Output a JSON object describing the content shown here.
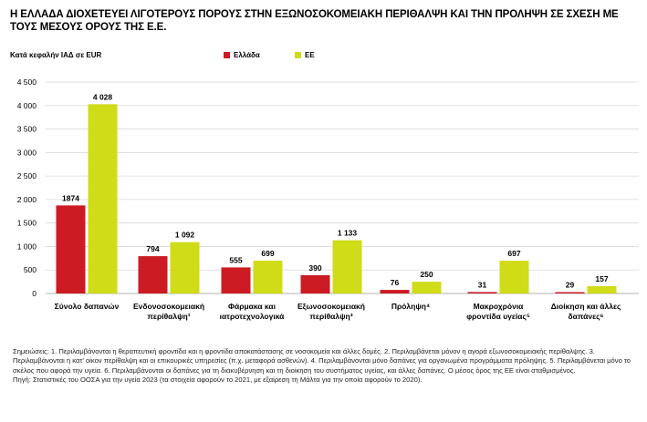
{
  "title": "Η ΕΛΛΑΔΑ ΔΙΟΧΕΤΕΥΕΙ ΛΙΓΟΤΕΡΟΥΣ ΠΟΡΟΥΣ ΣΤΗΝ ΕΞΩΝΟΣΟΚΟΜΕΙΑΚΗ ΠΕΡΙΘΑΛΨΗ ΚΑΙ ΤΗΝ ΠΡΟΛΗΨΗ ΣΕ ΣΧΕΣΗ ΜΕ ΤΟΥΣ ΜΕΣΟΥΣ ΟΡΟΥΣ ΤΗΣ Ε.Ε.",
  "notes": {
    "remarks": "Σημειώσεις: 1. Περιλαμβάνονται η θεραπευτική φροντίδα και η φροντίδα αποκατάστασης σε νοσοκομεία και άλλες δομές. 2. Περιλαμβάνεται μόνον η αγορά εξωνοσοκομειακής περίθαλψης. 3. Περιλαμβάνονται η κατ' οίκον περίθαλψη και οι επικουρικές υπηρεσίες (π.χ. μεταφορά ασθενών). 4. Περιλαμβάνονται μόνο δαπάνες για οργανωμένα προγράμματα πρόληψης. 5. Περιλαμβάνεται μόνο το σκέλος που αφορά την υγεία. 6. Περιλαμβάνονται οι δαπάνες για τη διακυβέρνηση και τη διοίκηση του συστήματος υγείας, και άλλες δαπάνες. Ο μέσος όρος της ΕΕ είναι σταθμισμένος.",
    "source": "Πηγή: Στατιστικές του ΟΟΣΑ για την υγεία 2023 (τα στοιχεία αφορούν το 2021, με εξαίρεση τη Μάλτα για την οποία αφορούν το 2020)."
  },
  "chart_data": {
    "type": "bar",
    "ylabel": "Κατά κεφαλήν ΙΑΔ σε EUR",
    "ylim": [
      0,
      4500
    ],
    "yticks": [
      0,
      500,
      1000,
      1500,
      2000,
      2500,
      3000,
      3500,
      4000,
      4500
    ],
    "ytick_labels": [
      "0",
      "500",
      "1 000",
      "1 500",
      "2 000",
      "2 500",
      "3 000",
      "3 500",
      "4 000",
      "4 500"
    ],
    "grid": true,
    "legend_position": "top",
    "categories": [
      [
        "Σύνολο δαπανών"
      ],
      [
        "Ενδονοσοκομειακή",
        "περίθαλψη¹"
      ],
      [
        "Φάρμακα και",
        "ιατροτεχνολογικά"
      ],
      [
        "Εξωνοσοκομειακή",
        "περίθαλψη³"
      ],
      [
        "Πρόληψη⁴"
      ],
      [
        "Μακροχρόνια",
        "φροντίδα υγείας⁵"
      ],
      [
        "Διοίκηση και άλλες",
        "δαπάνες⁶"
      ]
    ],
    "series": [
      {
        "name": "Ελλάδα",
        "color": "#cc1b23",
        "values": [
          1874,
          794,
          555,
          390,
          76,
          31,
          29
        ],
        "labels": [
          "1874",
          "794",
          "555",
          "390",
          "76",
          "31",
          "29"
        ]
      },
      {
        "name": "ΕΕ",
        "color": "#cfdc17",
        "values": [
          4028,
          1092,
          699,
          1133,
          250,
          697,
          157
        ],
        "labels": [
          "4 028",
          "1 092",
          "699",
          "1 133",
          "250",
          "697",
          "157"
        ]
      }
    ]
  }
}
